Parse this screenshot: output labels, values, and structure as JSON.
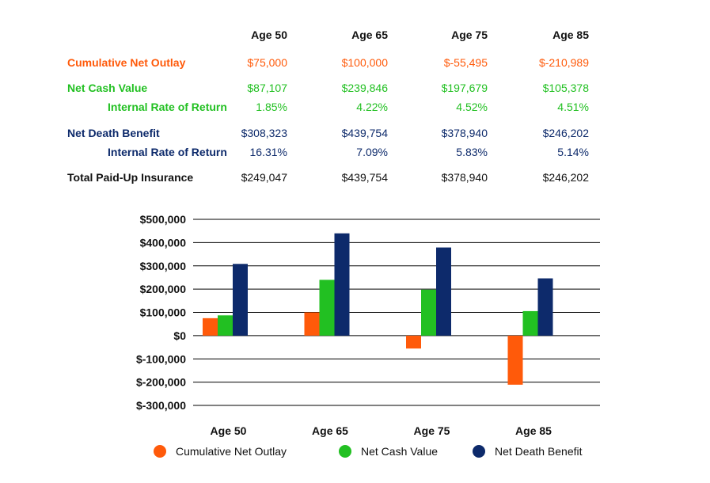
{
  "table": {
    "columns": [
      "Age 50",
      "Age 65",
      "Age 75",
      "Age 85"
    ],
    "rows": [
      {
        "label": "Cumulative Net Outlay",
        "values": [
          "$75,000",
          "$100,000",
          "$-55,495",
          "$-210,989"
        ]
      },
      {
        "label": "Net Cash Value",
        "values": [
          "$87,107",
          "$239,846",
          "$197,679",
          "$105,378"
        ]
      },
      {
        "label": "Internal Rate of Return",
        "values": [
          "1.85%",
          "4.22%",
          "4.52%",
          "4.51%"
        ]
      },
      {
        "label": "Net Death Benefit",
        "values": [
          "$308,323",
          "$439,754",
          "$378,940",
          "$246,202"
        ]
      },
      {
        "label": "Internal Rate of Return",
        "values": [
          "16.31%",
          "7.09%",
          "5.83%",
          "5.14%"
        ]
      },
      {
        "label": "Total Paid-Up Insurance",
        "values": [
          "$249,047",
          "$439,754",
          "$378,940",
          "$246,202"
        ]
      }
    ]
  },
  "chart_data": {
    "type": "bar",
    "categories": [
      "Age 50",
      "Age 65",
      "Age 75",
      "Age 85"
    ],
    "series": [
      {
        "name": "Cumulative Net Outlay",
        "color": "#ff5a0a",
        "values": [
          75000,
          100000,
          -55495,
          -210989
        ]
      },
      {
        "name": "Net Cash Value",
        "color": "#22c022",
        "values": [
          87107,
          239846,
          197679,
          105378
        ]
      },
      {
        "name": "Net Death Benefit",
        "color": "#0d2a6b",
        "values": [
          308323,
          439754,
          378940,
          246202
        ]
      }
    ],
    "yticks": [
      "$500,000",
      "$400,000",
      "$300,000",
      "$200,000",
      "$100,000",
      "$0",
      "$-100,000",
      "$-200,000",
      "$-300,000"
    ],
    "ylim": [
      -300000,
      500000
    ],
    "grid": true,
    "legend_position": "bottom",
    "title": "",
    "xlabel": "",
    "ylabel": ""
  }
}
